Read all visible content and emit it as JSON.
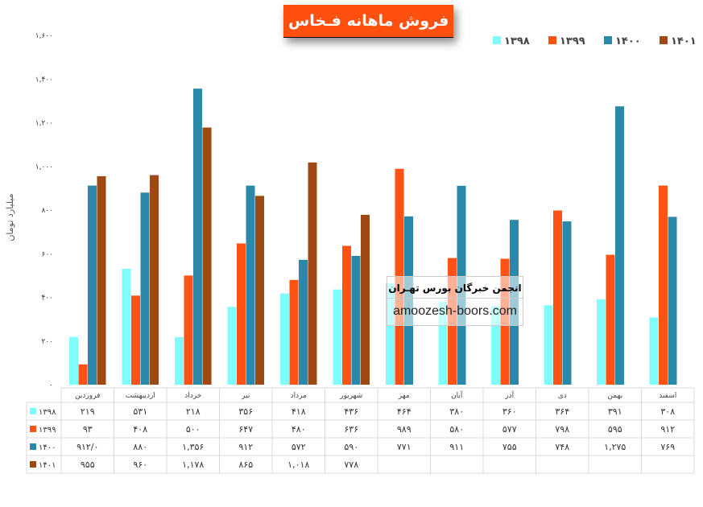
{
  "title": "فروش ماهانه فـخاس",
  "watermark": {
    "persian": "انجمن خبرگان بورس تهـران",
    "url": "amoozesh-boors.com"
  },
  "chart_data": {
    "type": "bar",
    "title": "فروش ماهانه فـخاس",
    "ylabel": "میلیارد تومان",
    "xlabel": "",
    "ylim": [
      0,
      1600
    ],
    "yticks": [
      0,
      200,
      400,
      600,
      800,
      1000,
      1200,
      1400,
      1600
    ],
    "ytick_labels": [
      "۰",
      "۲۰۰",
      "۴۰۰",
      "۶۰۰",
      "۸۰۰",
      "۱,۰۰۰",
      "۱,۲۰۰",
      "۱,۴۰۰",
      "۱,۶۰۰"
    ],
    "legend_position": "top-right",
    "categories": [
      "فروردین",
      "اردیبهشت",
      "خرداد",
      "تیر",
      "مرداد",
      "شهریور",
      "مهر",
      "آبان",
      "آذر",
      "دی",
      "بهمن",
      "اسفند"
    ],
    "series": [
      {
        "name": "۱۳۹۸",
        "color": "#80FCFC",
        "values": [
          219,
          531,
          218,
          356,
          418,
          436,
          464,
          380,
          360,
          364,
          391,
          308
        ],
        "labels": [
          "۲۱۹",
          "۵۳۱",
          "۲۱۸",
          "۳۵۶",
          "۴۱۸",
          "۴۳۶",
          "۴۶۴",
          "۳۸۰",
          "۳۶۰",
          "۳۶۴",
          "۳۹۱",
          "۳۰۸"
        ]
      },
      {
        "name": "۱۳۹۹",
        "color": "#FF5214",
        "values": [
          93,
          408,
          500,
          647,
          480,
          636,
          989,
          580,
          577,
          798,
          595,
          912
        ],
        "labels": [
          "۹۳",
          "۴۰۸",
          "۵۰۰",
          "۶۴۷",
          "۴۸۰",
          "۶۳۶",
          "۹۸۹",
          "۵۸۰",
          "۵۷۷",
          "۷۹۸",
          "۵۹۵",
          "۹۱۲"
        ]
      },
      {
        "name": "۱۴۰۰",
        "color": "#2A89A8",
        "values": [
          912,
          880,
          1356,
          912,
          572,
          590,
          771,
          911,
          755,
          748,
          1275,
          769
        ],
        "labels": [
          "۹۱۲/۰",
          "۸۸۰",
          "۱,۳۵۶",
          "۹۱۲",
          "۵۷۲",
          "۵۹۰",
          "۷۷۱",
          "۹۱۱",
          "۷۵۵",
          "۷۴۸",
          "۱,۲۷۵",
          "۷۶۹"
        ]
      },
      {
        "name": "۱۴۰۱",
        "color": "#9E4813",
        "values": [
          955,
          960,
          1178,
          865,
          1018,
          778,
          null,
          null,
          null,
          null,
          null,
          null
        ],
        "labels": [
          "۹۵۵",
          "۹۶۰",
          "۱,۱۷۸",
          "۸۶۵",
          "۱,۰۱۸",
          "۷۷۸",
          "",
          "",
          "",
          "",
          "",
          ""
        ]
      }
    ]
  }
}
